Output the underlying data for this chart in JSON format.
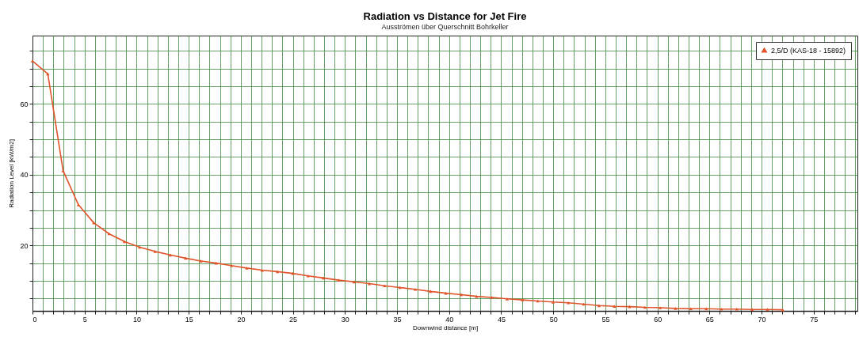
{
  "chart_data": {
    "type": "line",
    "title": "Radiation vs Distance for Jet Fire",
    "subtitle": "Ausströmen über Querschnitt Bohrkeller",
    "xlabel": "Downwind distance [m]",
    "ylabel": "Radiation Level [kW/m2]",
    "series": [
      {
        "name": "2,5/D (KAS-18 - 15892)",
        "color": "#e0532b",
        "x": [
          0,
          1.47,
          2.94,
          4.41,
          5.88,
          7.35,
          8.82,
          10.29,
          11.76,
          13.23,
          14.7,
          16.17,
          17.64,
          19.11,
          20.58,
          22.05,
          23.52,
          24.99,
          26.46,
          27.93,
          29.4,
          30.87,
          32.34,
          33.81,
          35.28,
          36.75,
          38.22,
          39.69,
          41.16,
          42.63,
          44.1,
          45.57,
          47.04,
          48.51,
          49.98,
          51.45,
          52.92,
          54.39,
          55.86,
          57.33,
          58.8,
          60.27,
          61.74,
          63.21,
          64.68,
          66.15,
          67.62,
          69.09,
          70.56,
          72.03
        ],
        "values": [
          72.1,
          68.5,
          41.1,
          31.5,
          26.4,
          23.3,
          21.1,
          19.5,
          18.3,
          17.3,
          16.4,
          15.6,
          15.0,
          14.3,
          13.6,
          13.0,
          12.6,
          12.1,
          11.4,
          10.8,
          10.2,
          9.7,
          9.2,
          8.6,
          8.1,
          7.6,
          7.0,
          6.5,
          6.1,
          5.6,
          5.3,
          4.9,
          4.6,
          4.3,
          4.0,
          3.8,
          3.4,
          3.0,
          2.8,
          2.7,
          2.5,
          2.4,
          2.2,
          2.1,
          2.1,
          2.0,
          2.0,
          1.9,
          1.9,
          1.8
        ]
      }
    ],
    "xlim": [
      0,
      79.2
    ],
    "ylim": [
      1.5,
      79.3
    ],
    "xticks": [
      0,
      {
        "value": 1,
        "label": null
      },
      {
        "value": 2,
        "label": null
      },
      {
        "value": 3,
        "label": null
      },
      {
        "value": 4,
        "label": null
      },
      5,
      {
        "value": 6,
        "label": null
      },
      {
        "value": 7,
        "label": null
      },
      {
        "value": 8,
        "label": null
      },
      {
        "value": 9,
        "label": null
      },
      10,
      {
        "value": 11,
        "label": null
      },
      {
        "value": 12,
        "label": null
      },
      {
        "value": 13,
        "label": null
      },
      {
        "value": 14,
        "label": null
      },
      15,
      {
        "value": 16,
        "label": null
      },
      {
        "value": 17,
        "label": null
      },
      {
        "value": 18,
        "label": null
      },
      {
        "value": 19,
        "label": null
      },
      20,
      {
        "value": 21,
        "label": null
      },
      {
        "value": 22,
        "label": null
      },
      {
        "value": 23,
        "label": null
      },
      {
        "value": 24,
        "label": null
      },
      25,
      {
        "value": 26,
        "label": null
      },
      {
        "value": 27,
        "label": null
      },
      {
        "value": 28,
        "label": null
      },
      {
        "value": 29,
        "label": null
      },
      30,
      {
        "value": 31,
        "label": null
      },
      {
        "value": 32,
        "label": null
      },
      {
        "value": 33,
        "label": null
      },
      {
        "value": 34,
        "label": null
      },
      35,
      {
        "value": 36,
        "label": null
      },
      {
        "value": 37,
        "label": null
      },
      {
        "value": 38,
        "label": null
      },
      {
        "value": 39,
        "label": null
      },
      40,
      {
        "value": 41,
        "label": null
      },
      {
        "value": 42,
        "label": null
      },
      {
        "value": 43,
        "label": null
      },
      {
        "value": 44,
        "label": null
      },
      45,
      {
        "value": 46,
        "label": null
      },
      {
        "value": 47,
        "label": null
      },
      {
        "value": 48,
        "label": null
      },
      {
        "value": 49,
        "label": null
      },
      50,
      {
        "value": 51,
        "label": null
      },
      {
        "value": 52,
        "label": null
      },
      {
        "value": 53,
        "label": null
      },
      {
        "value": 54,
        "label": null
      },
      55,
      {
        "value": 56,
        "label": null
      },
      {
        "value": 57,
        "label": null
      },
      {
        "value": 58,
        "label": null
      },
      {
        "value": 59,
        "label": null
      },
      60,
      {
        "value": 61,
        "label": null
      },
      {
        "value": 62,
        "label": null
      },
      {
        "value": 63,
        "label": null
      },
      {
        "value": 64,
        "label": null
      },
      65,
      {
        "value": 66,
        "label": null
      },
      {
        "value": 67,
        "label": null
      },
      {
        "value": 68,
        "label": null
      },
      {
        "value": 69,
        "label": null
      },
      70,
      {
        "value": 71,
        "label": null
      },
      {
        "value": 72,
        "label": null
      },
      {
        "value": 73,
        "label": null
      },
      {
        "value": 74,
        "label": null
      },
      75,
      {
        "value": 76,
        "label": null
      },
      {
        "value": 77,
        "label": null
      },
      {
        "value": 78,
        "label": null
      },
      {
        "value": 79,
        "label": null
      }
    ],
    "yticks": [
      {
        "value": 5,
        "label": null
      },
      {
        "value": 10,
        "label": null
      },
      {
        "value": 15,
        "label": null
      },
      20,
      {
        "value": 25,
        "label": null
      },
      {
        "value": 30,
        "label": null
      },
      {
        "value": 35,
        "label": null
      },
      40,
      {
        "value": 45,
        "label": null
      },
      {
        "value": 50,
        "label": null
      },
      {
        "value": 55,
        "label": null
      },
      60,
      {
        "value": 65,
        "label": null
      },
      {
        "value": 70,
        "label": null
      },
      {
        "value": 75,
        "label": null
      }
    ],
    "grid": true,
    "legend": "top right",
    "marker": "triangle",
    "line_style": "solid"
  }
}
